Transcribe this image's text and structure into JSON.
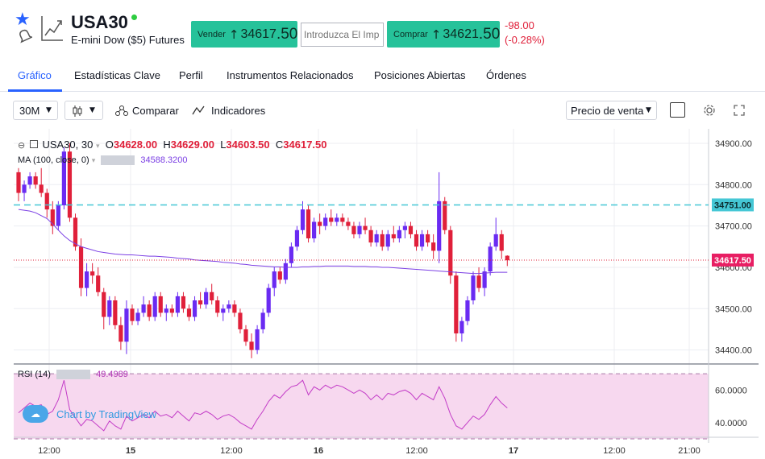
{
  "header": {
    "symbol": "USA30",
    "description": "E-mini Dow ($5) Futures",
    "sell": {
      "label": "Vender",
      "price_main": "34617",
      "price_big": ".50"
    },
    "buy": {
      "label": "Comprar",
      "price_main": "34621",
      "price_big": ".50"
    },
    "quantity_placeholder": "Introduzca El Imp",
    "change_abs": "-98.00",
    "change_pct": "(-0.28%)",
    "status_color": "#2ecc40",
    "accent": "#2962ff",
    "trade_color": "#26c29a"
  },
  "tabs": [
    {
      "label": "Gráfico",
      "active": true
    },
    {
      "label": "Estadísticas Clave"
    },
    {
      "label": "Perfil"
    },
    {
      "label": "Instrumentos Relacionados"
    },
    {
      "label": "Posiciones Abiertas"
    },
    {
      "label": "Órdenes"
    }
  ],
  "toolbar": {
    "interval": "30M",
    "compare_label": "Comparar",
    "indicators_label": "Indicadores",
    "price_type": "Precio de venta"
  },
  "legend": {
    "symbol_interval": "USA30, 30",
    "o_label": "O",
    "o_value": "34628.00",
    "h_label": "H",
    "h_value": "34629.00",
    "l_label": "L",
    "l_value": "34603.50",
    "c_label": "C",
    "c_value": "34617.50",
    "ma_label": "MA (100, close, 0)",
    "ma_value": "34588.3200",
    "rsi_label": "RSI (14)",
    "rsi_value": "49.4989"
  },
  "branding": "Chart by TradingView",
  "chart_data": {
    "type": "candlestick",
    "price_axis_ticks": [
      "34900.00",
      "34800.00",
      "34700.00",
      "34600.00",
      "34500.00",
      "34400.00"
    ],
    "price_ylim": [
      34370,
      34935
    ],
    "rsi_axis_ticks": [
      "60.0000",
      "40.0000"
    ],
    "rsi_ylim": [
      31,
      75
    ],
    "time_axis_ticks": [
      "12:00",
      "15",
      "12:00",
      "16",
      "12:00",
      "17",
      "12:00",
      "21:00"
    ],
    "current_price_label": "34617.50",
    "dashed_level_label": "34751.00",
    "up_color": "#6a2bf2",
    "down_color": "#e0203a",
    "ma_color": "#7b3fe4",
    "rsi_color": "#c33cc7",
    "candles": [
      [
        34830,
        34840,
        34760,
        34780
      ],
      [
        34780,
        34810,
        34760,
        34800
      ],
      [
        34800,
        34830,
        34790,
        34820
      ],
      [
        34820,
        34830,
        34790,
        34800
      ],
      [
        34800,
        34840,
        34770,
        34780
      ],
      [
        34780,
        34790,
        34720,
        34740
      ],
      [
        34740,
        34760,
        34680,
        34700
      ],
      [
        34700,
        34760,
        34690,
        34750
      ],
      [
        34750,
        34890,
        34740,
        34880
      ],
      [
        34880,
        34900,
        34710,
        34720
      ],
      [
        34720,
        34730,
        34640,
        34650
      ],
      [
        34650,
        34670,
        34530,
        34550
      ],
      [
        34550,
        34610,
        34530,
        34590
      ],
      [
        34590,
        34610,
        34560,
        34580
      ],
      [
        34580,
        34600,
        34530,
        34540
      ],
      [
        34540,
        34550,
        34450,
        34480
      ],
      [
        34480,
        34530,
        34460,
        34520
      ],
      [
        34520,
        34530,
        34450,
        34460
      ],
      [
        34460,
        34480,
        34400,
        34420
      ],
      [
        34420,
        34520,
        34390,
        34500
      ],
      [
        34500,
        34510,
        34460,
        34470
      ],
      [
        34470,
        34500,
        34460,
        34490
      ],
      [
        34490,
        34530,
        34480,
        34510
      ],
      [
        34510,
        34520,
        34470,
        34480
      ],
      [
        34480,
        34540,
        34470,
        34530
      ],
      [
        34530,
        34540,
        34480,
        34490
      ],
      [
        34490,
        34510,
        34470,
        34500
      ],
      [
        34500,
        34510,
        34480,
        34490
      ],
      [
        34490,
        34540,
        34480,
        34530
      ],
      [
        34530,
        34540,
        34490,
        34500
      ],
      [
        34500,
        34510,
        34470,
        34480
      ],
      [
        34480,
        34530,
        34470,
        34520
      ],
      [
        34520,
        34540,
        34500,
        34510
      ],
      [
        34510,
        34550,
        34500,
        34540
      ],
      [
        34540,
        34560,
        34510,
        34520
      ],
      [
        34520,
        34530,
        34480,
        34490
      ],
      [
        34490,
        34510,
        34470,
        34500
      ],
      [
        34500,
        34520,
        34490,
        34510
      ],
      [
        34510,
        34520,
        34480,
        34490
      ],
      [
        34490,
        34500,
        34440,
        34450
      ],
      [
        34450,
        34460,
        34410,
        34420
      ],
      [
        34420,
        34440,
        34380,
        34400
      ],
      [
        34400,
        34460,
        34390,
        34450
      ],
      [
        34450,
        34500,
        34440,
        34490
      ],
      [
        34490,
        34560,
        34480,
        34550
      ],
      [
        34550,
        34600,
        34530,
        34590
      ],
      [
        34590,
        34600,
        34560,
        34570
      ],
      [
        34570,
        34620,
        34560,
        34610
      ],
      [
        34610,
        34660,
        34600,
        34650
      ],
      [
        34650,
        34700,
        34640,
        34690
      ],
      [
        34690,
        34760,
        34680,
        34740
      ],
      [
        34740,
        34750,
        34660,
        34670
      ],
      [
        34670,
        34720,
        34660,
        34710
      ],
      [
        34710,
        34730,
        34680,
        34700
      ],
      [
        34700,
        34730,
        34690,
        34720
      ],
      [
        34720,
        34740,
        34700,
        34710
      ],
      [
        34710,
        34730,
        34700,
        34720
      ],
      [
        34720,
        34730,
        34700,
        34710
      ],
      [
        34710,
        34720,
        34690,
        34700
      ],
      [
        34700,
        34710,
        34670,
        34680
      ],
      [
        34680,
        34710,
        34670,
        34700
      ],
      [
        34700,
        34720,
        34680,
        34690
      ],
      [
        34690,
        34700,
        34650,
        34660
      ],
      [
        34660,
        34690,
        34650,
        34680
      ],
      [
        34680,
        34690,
        34640,
        34650
      ],
      [
        34650,
        34690,
        34640,
        34680
      ],
      [
        34680,
        34700,
        34660,
        34670
      ],
      [
        34670,
        34700,
        34660,
        34690
      ],
      [
        34690,
        34710,
        34670,
        34700
      ],
      [
        34700,
        34710,
        34670,
        34680
      ],
      [
        34680,
        34690,
        34640,
        34650
      ],
      [
        34650,
        34690,
        34640,
        34680
      ],
      [
        34680,
        34690,
        34650,
        34660
      ],
      [
        34660,
        34680,
        34620,
        34640
      ],
      [
        34640,
        34830,
        34610,
        34760
      ],
      [
        34760,
        34770,
        34680,
        34690
      ],
      [
        34690,
        34700,
        34560,
        34580
      ],
      [
        34580,
        34590,
        34420,
        34440
      ],
      [
        34440,
        34480,
        34420,
        34470
      ],
      [
        34470,
        34530,
        34460,
        34520
      ],
      [
        34520,
        34590,
        34510,
        34580
      ],
      [
        34580,
        34600,
        34540,
        34550
      ],
      [
        34550,
        34600,
        34530,
        34590
      ],
      [
        34590,
        34660,
        34580,
        34650
      ],
      [
        34650,
        34720,
        34640,
        34680
      ],
      [
        34680,
        34690,
        34620,
        34640
      ],
      [
        34628,
        34629,
        34603,
        34617
      ]
    ],
    "ma": [
      34740,
      34738,
      34736,
      34732,
      34725,
      34718,
      34705,
      34690,
      34676,
      34665,
      34657,
      34650,
      34646,
      34642,
      34638,
      34636,
      34634,
      34632,
      34631,
      34630,
      34630,
      34629,
      34628,
      34627,
      34627,
      34626,
      34625,
      34624,
      34622,
      34621,
      34620,
      34618,
      34617,
      34616,
      34615,
      34614,
      34612,
      34611,
      34610,
      34608,
      34607,
      34605,
      34604,
      34603,
      34602,
      34601,
      34601,
      34600,
      34600,
      34600,
      34601,
      34601,
      34602,
      34602,
      34603,
      34603,
      34603,
      34603,
      34603,
      34602,
      34602,
      34602,
      34601,
      34601,
      34600,
      34600,
      34599,
      34598,
      34597,
      34596,
      34595,
      34594,
      34593,
      34592,
      34591,
      34590,
      34589,
      34588,
      34587,
      34586,
      34585,
      34585,
      34586,
      34587,
      34588,
      34588,
      34588
    ],
    "rsi": [
      46,
      49,
      52,
      50,
      51,
      45,
      47,
      54,
      66,
      48,
      43,
      38,
      42,
      41,
      38,
      35,
      41,
      38,
      36,
      44,
      41,
      43,
      45,
      43,
      47,
      44,
      45,
      43,
      47,
      44,
      41,
      46,
      45,
      47,
      45,
      42,
      44,
      45,
      43,
      40,
      38,
      36,
      42,
      47,
      53,
      57,
      55,
      59,
      62,
      63,
      66,
      57,
      62,
      60,
      63,
      61,
      63,
      62,
      60,
      58,
      60,
      58,
      54,
      57,
      54,
      58,
      57,
      59,
      60,
      58,
      54,
      58,
      56,
      54,
      62,
      55,
      45,
      38,
      36,
      40,
      44,
      42,
      45,
      51,
      56,
      52,
      49
    ]
  }
}
